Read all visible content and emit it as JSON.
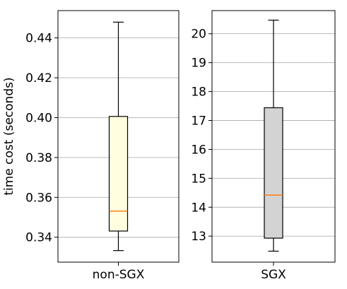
{
  "chart_data": [
    {
      "type": "box",
      "xlabel": "",
      "ylabel": "time cost (seconds)",
      "categories": [
        "non-SGX"
      ],
      "ylim": [
        0.3275,
        0.4537
      ],
      "yticks": [
        0.34,
        0.36,
        0.38,
        0.4,
        0.42,
        0.44
      ],
      "ytick_labels": [
        "0.34",
        "0.36",
        "0.38",
        "0.40",
        "0.42",
        "0.44"
      ],
      "grid": "y",
      "box": {
        "whisker_low": 0.3333,
        "q1": 0.3431,
        "median": 0.3531,
        "q3": 0.4006,
        "whisker_high": 0.4479,
        "fill_color": "#ffffe0",
        "median_color": "#ff7f0e"
      }
    },
    {
      "type": "box",
      "xlabel": "",
      "ylabel": "",
      "categories": [
        "SGX"
      ],
      "ylim": [
        12.1,
        20.8
      ],
      "yticks": [
        13,
        14,
        15,
        16,
        17,
        18,
        19,
        20
      ],
      "ytick_labels": [
        "13",
        "14",
        "15",
        "16",
        "17",
        "18",
        "19",
        "20"
      ],
      "grid": "y",
      "box": {
        "whisker_low": 12.48,
        "q1": 12.93,
        "median": 14.42,
        "q3": 17.44,
        "whisker_high": 20.47,
        "fill_color": "#d3d3d3",
        "median_color": "#ff7f0e"
      }
    }
  ]
}
